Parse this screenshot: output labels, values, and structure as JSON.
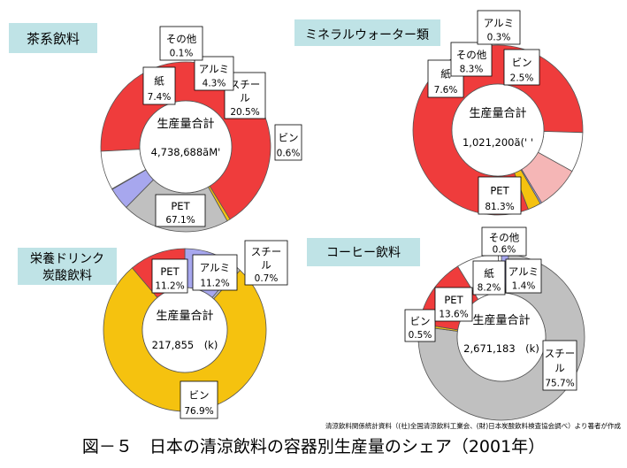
{
  "chart_data": [
    {
      "type": "pie",
      "title": "茶系飲料",
      "total_label": "生産量合計",
      "total_value": "4,738,688ãM' ",
      "slices": [
        {
          "label": "PET",
          "value_text": "67.1%",
          "value": 67.1,
          "color": "#ef3c3c"
        },
        {
          "label": "ビン",
          "value_text": "0.6%",
          "value": 0.6,
          "color": "#f5c20f"
        },
        {
          "label": "スチール",
          "value_text": "20.5%",
          "value": 20.5,
          "color": "#c0c0c0"
        },
        {
          "label": "アルミ",
          "value_text": "4.3%",
          "value": 4.3,
          "color": "#a7a7ee"
        },
        {
          "label": "その他",
          "value_text": "0.1%",
          "value": 0.1,
          "color": "#ffffff"
        },
        {
          "label": "紙",
          "value_text": "7.4%",
          "value": 7.4,
          "color": "#ffffff"
        }
      ]
    },
    {
      "type": "pie",
      "title": "ミネラルウォーター類",
      "total_label": "生産量合計",
      "total_value": "1,021,200ã(' ' ",
      "slices": [
        {
          "label": "PET",
          "value_text": "81.3%",
          "value": 81.3,
          "color": "#ef3c3c"
        },
        {
          "label": "紙",
          "value_text": "7.6%",
          "value": 7.6,
          "color": "#ffffff"
        },
        {
          "label": "その他",
          "value_text": "8.3%",
          "value": 8.3,
          "color": "#f5b6b6"
        },
        {
          "label": "アルミ",
          "value_text": "0.3%",
          "value": 0.3,
          "color": "#a7a7ee"
        },
        {
          "label": "ビン",
          "value_text": "2.5%",
          "value": 2.5,
          "color": "#f5c20f"
        }
      ]
    },
    {
      "type": "pie",
      "title": "栄養ドリンク 炭酸飲料",
      "total_label": "生産量合計",
      "total_value": "217,855　(k)",
      "slices": [
        {
          "label": "アルミ",
          "value_text": "11.2%",
          "value": 11.2,
          "color": "#a7a7ee"
        },
        {
          "label": "スチール",
          "value_text": "0.7%",
          "value": 0.7,
          "color": "#c0c0c0"
        },
        {
          "label": "ビン",
          "value_text": "76.9%",
          "value": 76.9,
          "color": "#f5c20f"
        },
        {
          "label": "PET",
          "value_text": "11.2%",
          "value": 11.2,
          "color": "#ef3c3c"
        }
      ]
    },
    {
      "type": "pie",
      "title": "コーヒー飲料",
      "total_label": "生産量合計",
      "total_value": "2,671,183　(k)",
      "slices": [
        {
          "label": "アルミ",
          "value_text": "1.4%",
          "value": 1.4,
          "color": "#a7a7ee"
        },
        {
          "label": "スチール",
          "value_text": "75.7%",
          "value": 75.7,
          "color": "#c0c0c0"
        },
        {
          "label": "ビン",
          "value_text": "0.5%",
          "value": 0.5,
          "color": "#f5c20f"
        },
        {
          "label": "PET",
          "value_text": "13.6%",
          "value": 13.6,
          "color": "#ef3c3c"
        },
        {
          "label": "紙",
          "value_text": "8.2%",
          "value": 8.2,
          "color": "#ffffff"
        },
        {
          "label": "その他",
          "value_text": "0.6%",
          "value": 0.6,
          "color": "#ffffff"
        }
      ]
    }
  ],
  "source_note": "清涼飲料関係統計資料（(社)全国清涼飲料工業会、(財)日本炭酸飲料検査協会調べ）より著者が作成",
  "figure_caption": "図－５　日本の清涼飲料の容器別生産量のシェア（2001年）",
  "colors": {
    "title_box": "#bfe3e6",
    "outline": "#555555"
  }
}
